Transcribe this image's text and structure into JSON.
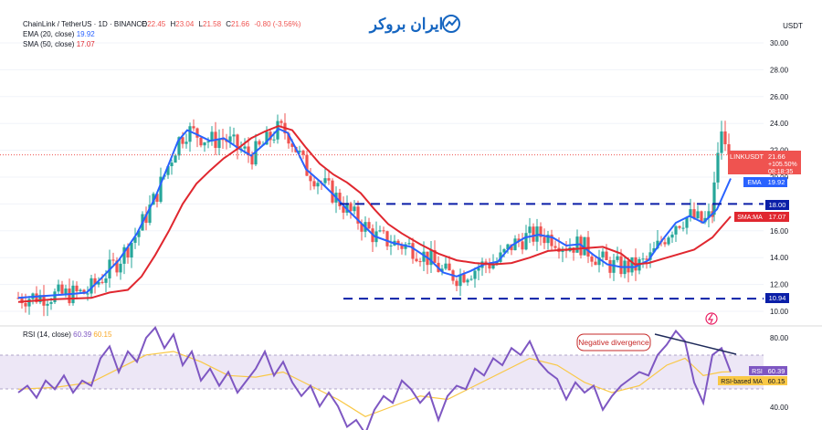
{
  "header": {
    "symbol": "ChainLink / TetherUS · 1D · BINANCE",
    "ohlc_o_label": "O",
    "ohlc_o": "22.45",
    "ohlc_h_label": "H",
    "ohlc_h": "23.04",
    "ohlc_l_label": "L",
    "ohlc_l": "21.58",
    "ohlc_c_label": "C",
    "ohlc_c": "21.66",
    "change": "-0.80 (-3.56%)",
    "ema_label": "EMA (20, close)",
    "ema_value": "19.92",
    "sma_label": "SMA (50, close)",
    "sma_value": "17.07"
  },
  "watermark": {
    "text": "ایران بروکر"
  },
  "price_axis": {
    "currency": "USDT",
    "ticks": [
      "30.00",
      "28.00",
      "26.00",
      "24.00",
      "22.00",
      "20.00",
      "18.00",
      "16.00",
      "14.00",
      "12.00",
      "10.00"
    ]
  },
  "price_labels": {
    "pair": "LINKUSDT",
    "last": "21.66",
    "change_pct": "+105.50%",
    "countdown": "08:18:35",
    "ema_tag": "EMA",
    "ema_value": "19.92",
    "level_upper": "18.00",
    "sma_tag": "SMA:MA",
    "sma_value": "17.07",
    "level_lower": "10.94"
  },
  "rsi": {
    "label": "RSI (14, close)",
    "value": "60.39",
    "ma_value": "60.15",
    "tag": "RSI",
    "ma_tag": "RSI-based MA",
    "ticks": [
      "80.00",
      "40.00"
    ],
    "annotation": "Negative divergence"
  },
  "colors": {
    "up": "#26a69a",
    "down": "#ef5350",
    "ema": "#2962ff",
    "sma": "#e0272f",
    "rsi": "#7e57c2",
    "rsi_ma": "#f9c846",
    "level": "#0b1fa8",
    "divergence": "#1e2a5a",
    "annotation_border": "#c62828",
    "rsi_band": "#ede7f6",
    "lastprice": "#ef5350"
  },
  "chart_data": {
    "type": "candlestick",
    "title": "ChainLink / TetherUS · 1D · BINANCE",
    "y_range": [
      9.4,
      31.2
    ],
    "levels": [
      18.0,
      10.94
    ],
    "series": [
      {
        "name": "EMA (20, close)",
        "points": [
          [
            0,
            11.0
          ],
          [
            20,
            11.1
          ],
          [
            40,
            11.2
          ],
          [
            60,
            11.3
          ],
          [
            75,
            11.4
          ],
          [
            90,
            12.4
          ],
          [
            110,
            13.8
          ],
          [
            130,
            15.8
          ],
          [
            150,
            18.5
          ],
          [
            165,
            21.0
          ],
          [
            175,
            22.7
          ],
          [
            185,
            23.5
          ],
          [
            195,
            23.2
          ],
          [
            210,
            22.7
          ],
          [
            225,
            22.9
          ],
          [
            240,
            22.2
          ],
          [
            255,
            21.6
          ],
          [
            270,
            22.5
          ],
          [
            285,
            23.6
          ],
          [
            295,
            23.3
          ],
          [
            305,
            22.0
          ],
          [
            315,
            20.6
          ],
          [
            330,
            19.7
          ],
          [
            345,
            18.7
          ],
          [
            360,
            17.6
          ],
          [
            375,
            16.6
          ],
          [
            390,
            15.6
          ],
          [
            410,
            15.1
          ],
          [
            430,
            14.8
          ],
          [
            450,
            13.9
          ],
          [
            465,
            12.9
          ],
          [
            480,
            12.6
          ],
          [
            495,
            13.0
          ],
          [
            510,
            13.5
          ],
          [
            525,
            13.7
          ],
          [
            540,
            14.9
          ],
          [
            555,
            15.5
          ],
          [
            570,
            15.7
          ],
          [
            585,
            15.5
          ],
          [
            600,
            14.9
          ],
          [
            615,
            15.0
          ],
          [
            630,
            14.2
          ],
          [
            645,
            13.5
          ],
          [
            660,
            13.3
          ],
          [
            675,
            13.3
          ],
          [
            690,
            13.8
          ],
          [
            705,
            15.3
          ],
          [
            720,
            16.6
          ],
          [
            735,
            17.1
          ],
          [
            750,
            16.6
          ],
          [
            765,
            17.6
          ],
          [
            780,
            19.9
          ]
        ]
      },
      {
        "name": "SMA (50, close)",
        "points": [
          [
            0,
            10.7
          ],
          [
            40,
            10.9
          ],
          [
            80,
            11.0
          ],
          [
            100,
            11.4
          ],
          [
            120,
            11.6
          ],
          [
            135,
            12.6
          ],
          [
            150,
            14.2
          ],
          [
            165,
            16.0
          ],
          [
            180,
            18.0
          ],
          [
            195,
            19.5
          ],
          [
            210,
            20.5
          ],
          [
            225,
            21.4
          ],
          [
            240,
            22.1
          ],
          [
            255,
            22.9
          ],
          [
            270,
            23.4
          ],
          [
            285,
            23.8
          ],
          [
            300,
            23.5
          ],
          [
            315,
            22.2
          ],
          [
            330,
            21.0
          ],
          [
            345,
            20.2
          ],
          [
            360,
            19.6
          ],
          [
            375,
            18.8
          ],
          [
            390,
            17.6
          ],
          [
            405,
            16.5
          ],
          [
            420,
            15.8
          ],
          [
            440,
            15.0
          ],
          [
            460,
            14.3
          ],
          [
            480,
            13.8
          ],
          [
            500,
            13.6
          ],
          [
            520,
            13.5
          ],
          [
            540,
            13.6
          ],
          [
            560,
            14.0
          ],
          [
            580,
            14.5
          ],
          [
            600,
            14.6
          ],
          [
            620,
            14.7
          ],
          [
            640,
            14.8
          ],
          [
            660,
            14.3
          ],
          [
            675,
            13.5
          ],
          [
            690,
            13.6
          ],
          [
            705,
            13.9
          ],
          [
            720,
            14.2
          ],
          [
            740,
            14.6
          ],
          [
            760,
            15.5
          ],
          [
            780,
            17.07
          ]
        ]
      }
    ],
    "rsi_series": {
      "name": "RSI (14, close)",
      "range": [
        20,
        100
      ],
      "points": [
        [
          0,
          48
        ],
        [
          10,
          52
        ],
        [
          20,
          45
        ],
        [
          30,
          55
        ],
        [
          40,
          50
        ],
        [
          50,
          58
        ],
        [
          60,
          48
        ],
        [
          70,
          55
        ],
        [
          80,
          52
        ],
        [
          90,
          68
        ],
        [
          100,
          75
        ],
        [
          110,
          60
        ],
        [
          120,
          72
        ],
        [
          130,
          66
        ],
        [
          140,
          80
        ],
        [
          150,
          86
        ],
        [
          160,
          74
        ],
        [
          170,
          82
        ],
        [
          180,
          64
        ],
        [
          190,
          72
        ],
        [
          200,
          55
        ],
        [
          210,
          62
        ],
        [
          220,
          52
        ],
        [
          230,
          60
        ],
        [
          240,
          48
        ],
        [
          250,
          55
        ],
        [
          260,
          62
        ],
        [
          270,
          72
        ],
        [
          280,
          58
        ],
        [
          290,
          66
        ],
        [
          300,
          54
        ],
        [
          310,
          46
        ],
        [
          320,
          52
        ],
        [
          330,
          40
        ],
        [
          340,
          48
        ],
        [
          350,
          40
        ],
        [
          360,
          28
        ],
        [
          370,
          32
        ],
        [
          380,
          24
        ],
        [
          390,
          38
        ],
        [
          400,
          46
        ],
        [
          410,
          42
        ],
        [
          420,
          55
        ],
        [
          430,
          50
        ],
        [
          440,
          42
        ],
        [
          450,
          48
        ],
        [
          460,
          32
        ],
        [
          470,
          46
        ],
        [
          480,
          52
        ],
        [
          490,
          50
        ],
        [
          500,
          62
        ],
        [
          510,
          58
        ],
        [
          520,
          68
        ],
        [
          530,
          64
        ],
        [
          540,
          74
        ],
        [
          550,
          70
        ],
        [
          560,
          78
        ],
        [
          570,
          66
        ],
        [
          580,
          60
        ],
        [
          590,
          56
        ],
        [
          600,
          44
        ],
        [
          610,
          54
        ],
        [
          620,
          48
        ],
        [
          630,
          52
        ],
        [
          640,
          38
        ],
        [
          650,
          46
        ],
        [
          660,
          52
        ],
        [
          670,
          56
        ],
        [
          680,
          60
        ],
        [
          690,
          58
        ],
        [
          700,
          70
        ],
        [
          710,
          76
        ],
        [
          720,
          84
        ],
        [
          730,
          78
        ],
        [
          740,
          54
        ],
        [
          750,
          42
        ],
        [
          760,
          70
        ],
        [
          770,
          74
        ],
        [
          780,
          60
        ]
      ]
    },
    "rsi_ma_series": {
      "name": "RSI-based MA",
      "points": [
        [
          0,
          50
        ],
        [
          40,
          51
        ],
        [
          80,
          54
        ],
        [
          110,
          62
        ],
        [
          140,
          70
        ],
        [
          170,
          72
        ],
        [
          200,
          66
        ],
        [
          230,
          58
        ],
        [
          260,
          57
        ],
        [
          290,
          60
        ],
        [
          320,
          52
        ],
        [
          350,
          44
        ],
        [
          380,
          34
        ],
        [
          410,
          40
        ],
        [
          440,
          46
        ],
        [
          470,
          44
        ],
        [
          500,
          52
        ],
        [
          530,
          60
        ],
        [
          560,
          68
        ],
        [
          590,
          64
        ],
        [
          620,
          54
        ],
        [
          650,
          48
        ],
        [
          680,
          52
        ],
        [
          710,
          64
        ],
        [
          730,
          68
        ],
        [
          750,
          58
        ],
        [
          770,
          60
        ],
        [
          780,
          60.15
        ]
      ]
    }
  }
}
